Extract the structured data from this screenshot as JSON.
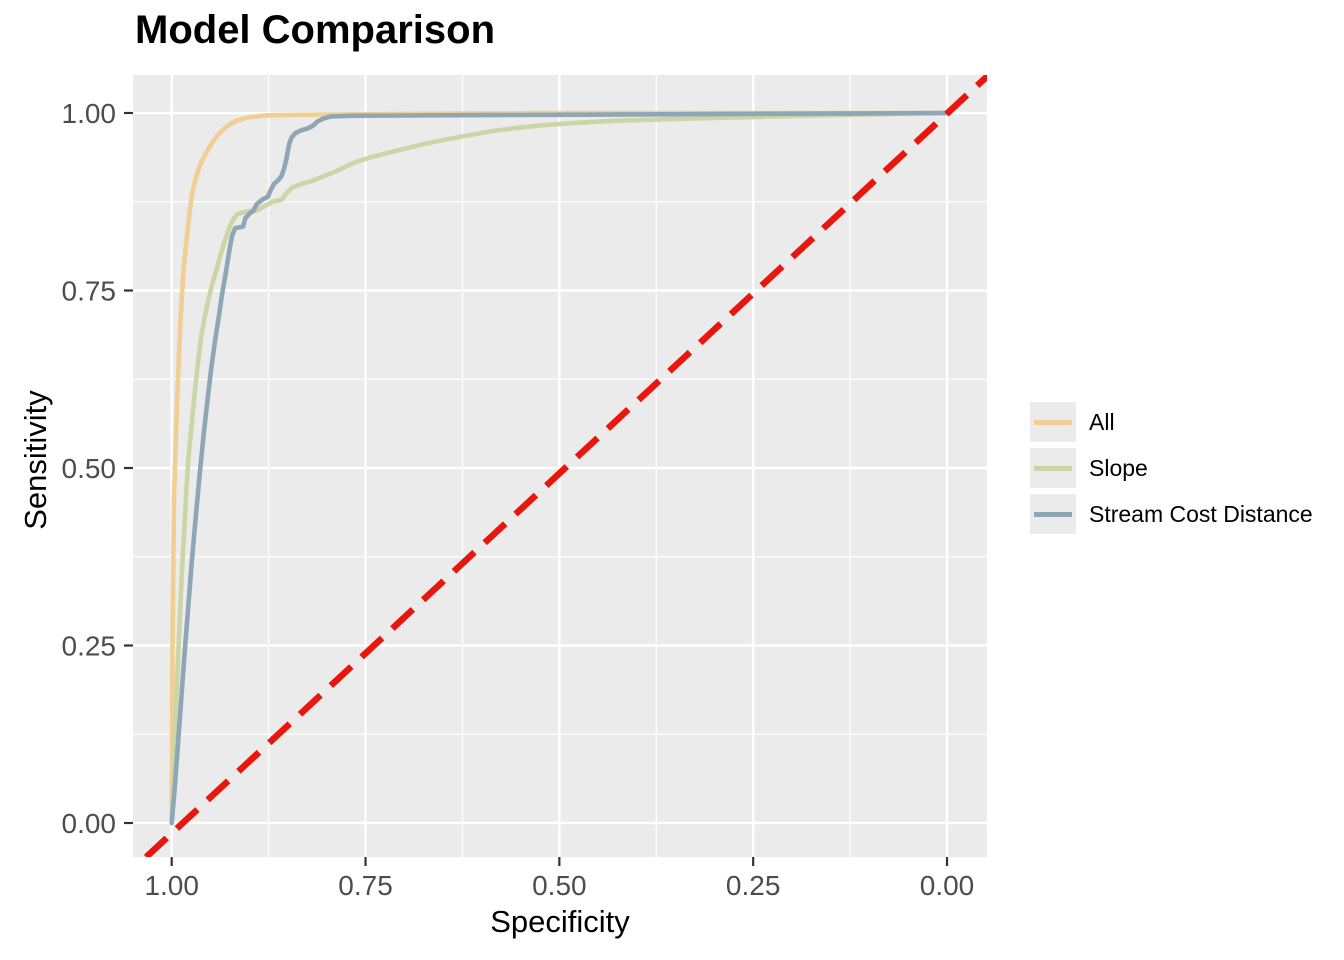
{
  "chart_data": {
    "type": "line",
    "subtype": "roc-curves",
    "title": "Model Comparison",
    "xlabel": "Specificity",
    "ylabel": "Sensitivity",
    "x_reversed": true,
    "xlim": [
      1.0,
      0.0
    ],
    "ylim": [
      0.0,
      1.0
    ],
    "x_ticks": [
      "1.00",
      "0.75",
      "0.50",
      "0.25",
      "0.00"
    ],
    "x_tick_values": [
      1.0,
      0.75,
      0.5,
      0.25,
      0.0
    ],
    "y_ticks": [
      "0.00",
      "0.25",
      "0.50",
      "0.75",
      "1.00"
    ],
    "y_tick_values": [
      0.0,
      0.25,
      0.5,
      0.75,
      1.0
    ],
    "grid": "major-and-minor-white-on-gray",
    "legend_position": "right",
    "panel_bg": "#ebebeb",
    "grid_color": "#ffffff",
    "tick_mark_color": "#333333",
    "tick_label_color": "#4d4d4d",
    "series": [
      {
        "name": "All",
        "color": "#f1ce94",
        "points": [
          [
            1.0,
            0.0
          ],
          [
            0.9995,
            0.12
          ],
          [
            0.999,
            0.25
          ],
          [
            0.998,
            0.37
          ],
          [
            0.997,
            0.46
          ],
          [
            0.995,
            0.53
          ],
          [
            0.993,
            0.595
          ],
          [
            0.991,
            0.65
          ],
          [
            0.989,
            0.7
          ],
          [
            0.987,
            0.74
          ],
          [
            0.985,
            0.775
          ],
          [
            0.982,
            0.81
          ],
          [
            0.979,
            0.84
          ],
          [
            0.976,
            0.868
          ],
          [
            0.973,
            0.89
          ],
          [
            0.969,
            0.908
          ],
          [
            0.965,
            0.922
          ],
          [
            0.96,
            0.935
          ],
          [
            0.954,
            0.947
          ],
          [
            0.948,
            0.958
          ],
          [
            0.941,
            0.968
          ],
          [
            0.933,
            0.977
          ],
          [
            0.924,
            0.985
          ],
          [
            0.914,
            0.99
          ],
          [
            0.9,
            0.994
          ],
          [
            0.885,
            0.996
          ],
          [
            0.865,
            0.997
          ],
          [
            0.83,
            0.9975
          ],
          [
            0.78,
            0.998
          ],
          [
            0.72,
            0.9985
          ],
          [
            0.66,
            0.999
          ],
          [
            0.6,
            0.9995
          ],
          [
            0.5,
            1.0
          ],
          [
            0.35,
            1.0
          ],
          [
            0.2,
            1.0
          ],
          [
            0.0,
            1.0
          ]
        ]
      },
      {
        "name": "Slope",
        "color": "#ccd5a5",
        "points": [
          [
            1.0,
            0.0
          ],
          [
            0.998,
            0.05
          ],
          [
            0.996,
            0.12
          ],
          [
            0.993,
            0.2
          ],
          [
            0.99,
            0.28
          ],
          [
            0.987,
            0.35
          ],
          [
            0.984,
            0.41
          ],
          [
            0.981,
            0.47
          ],
          [
            0.978,
            0.52
          ],
          [
            0.974,
            0.565
          ],
          [
            0.97,
            0.61
          ],
          [
            0.966,
            0.65
          ],
          [
            0.962,
            0.685
          ],
          [
            0.957,
            0.715
          ],
          [
            0.952,
            0.74
          ],
          [
            0.947,
            0.762
          ],
          [
            0.942,
            0.78
          ],
          [
            0.937,
            0.8
          ],
          [
            0.932,
            0.818
          ],
          [
            0.927,
            0.835
          ],
          [
            0.922,
            0.848
          ],
          [
            0.916,
            0.857
          ],
          [
            0.905,
            0.861
          ],
          [
            0.89,
            0.863
          ],
          [
            0.878,
            0.87
          ],
          [
            0.87,
            0.875
          ],
          [
            0.858,
            0.878
          ],
          [
            0.852,
            0.887
          ],
          [
            0.845,
            0.895
          ],
          [
            0.833,
            0.9
          ],
          [
            0.82,
            0.904
          ],
          [
            0.806,
            0.91
          ],
          [
            0.79,
            0.917
          ],
          [
            0.775,
            0.925
          ],
          [
            0.76,
            0.932
          ],
          [
            0.745,
            0.937
          ],
          [
            0.725,
            0.943
          ],
          [
            0.705,
            0.948
          ],
          [
            0.68,
            0.955
          ],
          [
            0.65,
            0.962
          ],
          [
            0.62,
            0.968
          ],
          [
            0.59,
            0.974
          ],
          [
            0.555,
            0.979
          ],
          [
            0.52,
            0.983
          ],
          [
            0.48,
            0.986
          ],
          [
            0.43,
            0.989
          ],
          [
            0.37,
            0.991
          ],
          [
            0.3,
            0.993
          ],
          [
            0.22,
            0.995
          ],
          [
            0.14,
            0.997
          ],
          [
            0.06,
            0.999
          ],
          [
            0.0,
            1.0
          ]
        ]
      },
      {
        "name": "Stream Cost Distance",
        "color": "#8ea6b5",
        "points": [
          [
            1.0,
            0.0
          ],
          [
            0.996,
            0.05
          ],
          [
            0.992,
            0.11
          ],
          [
            0.988,
            0.17
          ],
          [
            0.984,
            0.23
          ],
          [
            0.979,
            0.3
          ],
          [
            0.974,
            0.37
          ],
          [
            0.969,
            0.43
          ],
          [
            0.964,
            0.49
          ],
          [
            0.959,
            0.545
          ],
          [
            0.954,
            0.595
          ],
          [
            0.949,
            0.64
          ],
          [
            0.944,
            0.68
          ],
          [
            0.939,
            0.715
          ],
          [
            0.935,
            0.745
          ],
          [
            0.931,
            0.77
          ],
          [
            0.928,
            0.79
          ],
          [
            0.925,
            0.81
          ],
          [
            0.922,
            0.828
          ],
          [
            0.918,
            0.838
          ],
          [
            0.908,
            0.84
          ],
          [
            0.905,
            0.852
          ],
          [
            0.9,
            0.858
          ],
          [
            0.895,
            0.862
          ],
          [
            0.89,
            0.872
          ],
          [
            0.883,
            0.878
          ],
          [
            0.876,
            0.882
          ],
          [
            0.872,
            0.892
          ],
          [
            0.868,
            0.9
          ],
          [
            0.862,
            0.906
          ],
          [
            0.858,
            0.912
          ],
          [
            0.855,
            0.922
          ],
          [
            0.852,
            0.935
          ],
          [
            0.85,
            0.948
          ],
          [
            0.848,
            0.958
          ],
          [
            0.845,
            0.966
          ],
          [
            0.84,
            0.972
          ],
          [
            0.832,
            0.976
          ],
          [
            0.825,
            0.978
          ],
          [
            0.818,
            0.982
          ],
          [
            0.812,
            0.988
          ],
          [
            0.805,
            0.992
          ],
          [
            0.795,
            0.995
          ],
          [
            0.77,
            0.996
          ],
          [
            0.7,
            0.9965
          ],
          [
            0.6,
            0.997
          ],
          [
            0.5,
            0.9975
          ],
          [
            0.4,
            0.998
          ],
          [
            0.3,
            0.9985
          ],
          [
            0.2,
            0.999
          ],
          [
            0.1,
            0.9995
          ],
          [
            0.0,
            1.0
          ]
        ]
      }
    ],
    "reference_line": {
      "description": "chance diagonal",
      "style": "dashed",
      "color": "#e8160c",
      "from": [
        1.033,
        -0.048
      ],
      "to": [
        -0.058,
        1.058
      ]
    }
  }
}
